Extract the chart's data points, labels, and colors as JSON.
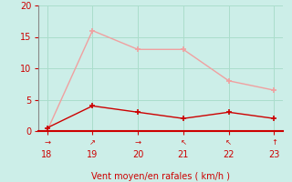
{
  "x": [
    18,
    19,
    20,
    21,
    22,
    23
  ],
  "rafales": [
    0,
    16,
    13,
    13,
    8,
    6.5
  ],
  "moyen": [
    0.5,
    4,
    3,
    2,
    3,
    2
  ],
  "wind_arrows": [
    "→",
    "↗",
    "→",
    "↖",
    "↖",
    "↑"
  ],
  "bg_color": "#cceee8",
  "grid_color": "#aaddcc",
  "line_color_rafales": "#f0a0a0",
  "line_color_moyen": "#cc0000",
  "xlabel": "Vent moyen/en rafales ( km/h )",
  "xlabel_color": "#cc0000",
  "tick_color": "#cc0000",
  "spine_color": "#888888",
  "bottom_spine_color": "#cc0000",
  "ylim": [
    0,
    20
  ],
  "yticks": [
    0,
    5,
    10,
    15,
    20
  ],
  "xlim": [
    17.8,
    23.2
  ],
  "xticks": [
    18,
    19,
    20,
    21,
    22,
    23
  ]
}
